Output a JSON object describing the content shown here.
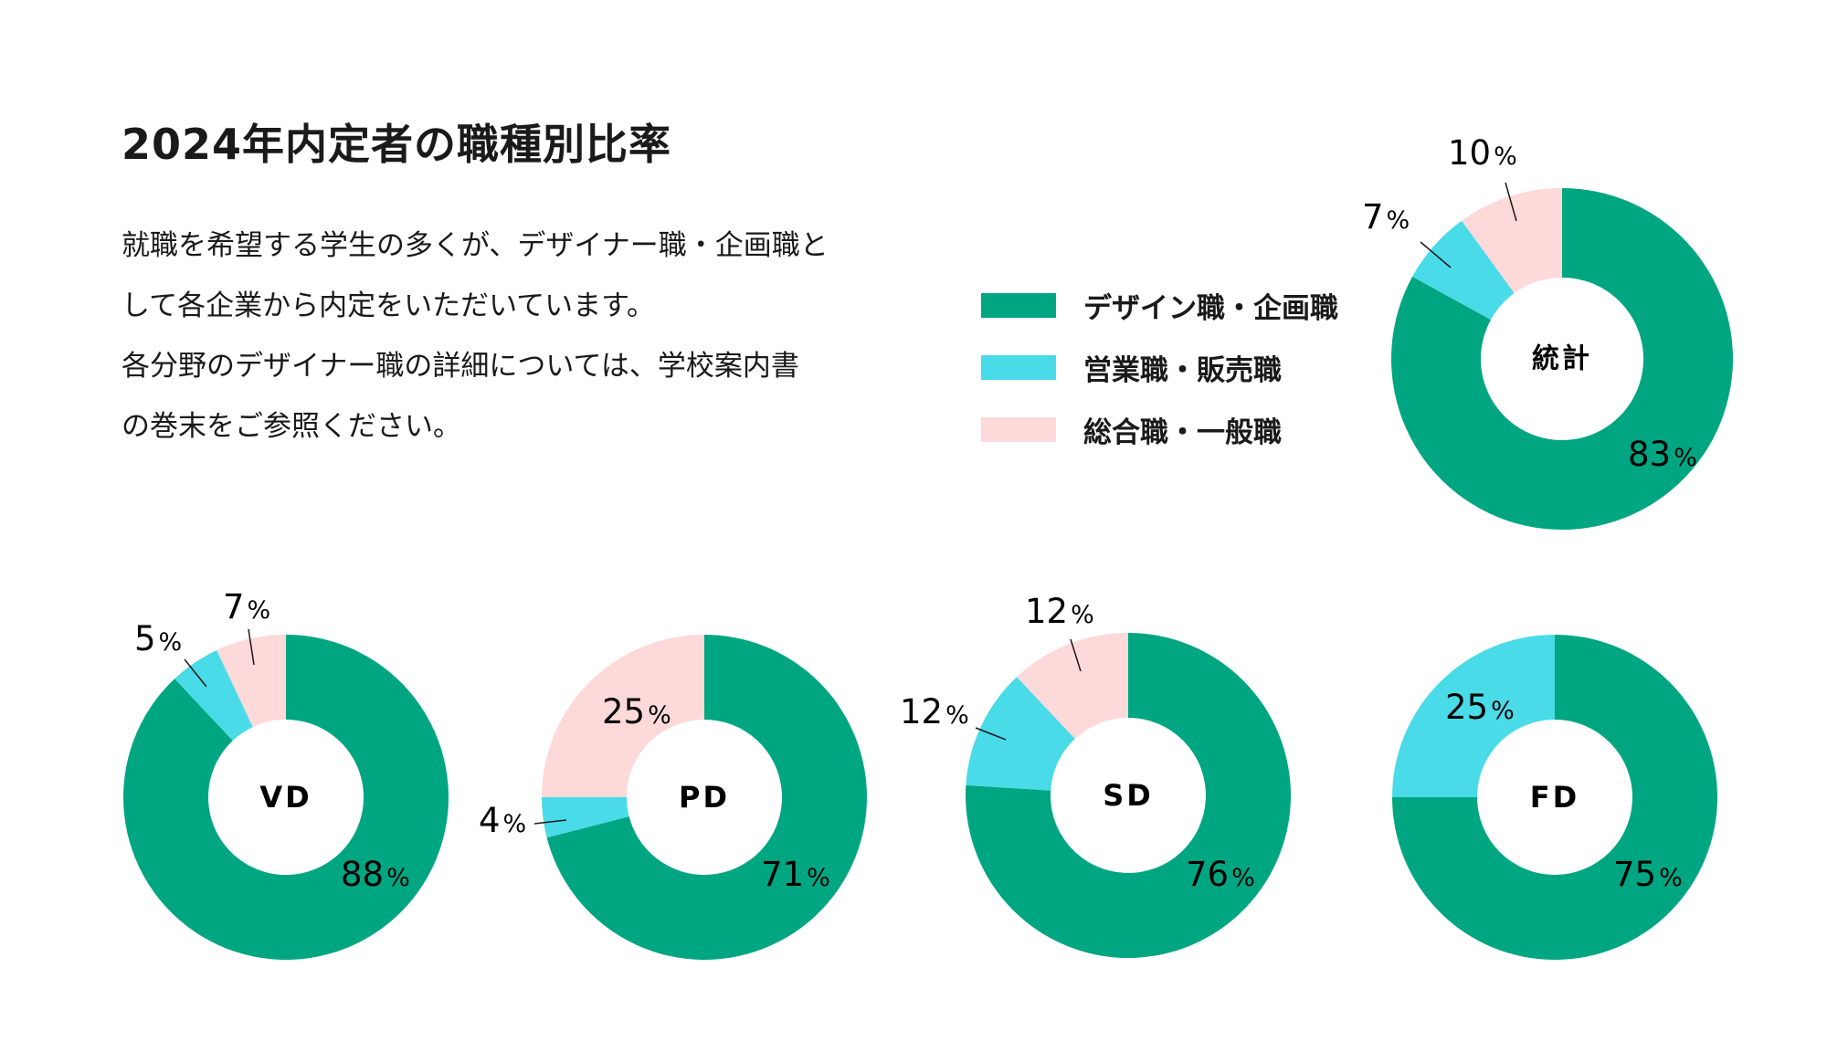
{
  "title": "2024年内定者の職種別比率",
  "description": [
    "就職を希望する学生の多くが、デザイナー職・企画職と",
    "して各企業から内定をいただいています。",
    "各分野のデザイナー職の詳細については、学校案内書",
    "の巻末をご参照ください。"
  ],
  "colors": {
    "design_planning": "#00a681",
    "sales_retail": "#4adbe8",
    "general": "#fdd9da"
  },
  "legend": [
    {
      "label": "デザイン職・企画職",
      "color": "#00a681"
    },
    {
      "label": "営業職・販売職",
      "color": "#4adbe8"
    },
    {
      "label": "総合職・一般職",
      "color": "#fdd9da"
    }
  ],
  "chart_data": [
    {
      "type": "pie",
      "center_label": "統計",
      "slices": [
        {
          "category": "デザイン職・企画職",
          "value": 83,
          "label": "83"
        },
        {
          "category": "営業職・販売職",
          "value": 7,
          "label": "7"
        },
        {
          "category": "総合職・一般職",
          "value": 10,
          "label": "10"
        }
      ],
      "unit": "%"
    },
    {
      "type": "pie",
      "center_label": "VD",
      "slices": [
        {
          "category": "デザイン職・企画職",
          "value": 88,
          "label": "88"
        },
        {
          "category": "営業職・販売職",
          "value": 5,
          "label": "5"
        },
        {
          "category": "総合職・一般職",
          "value": 7,
          "label": "7"
        }
      ],
      "unit": "%"
    },
    {
      "type": "pie",
      "center_label": "PD",
      "slices": [
        {
          "category": "デザイン職・企画職",
          "value": 71,
          "label": "71"
        },
        {
          "category": "営業職・販売職",
          "value": 4,
          "label": "4"
        },
        {
          "category": "総合職・一般職",
          "value": 25,
          "label": "25"
        }
      ],
      "unit": "%"
    },
    {
      "type": "pie",
      "center_label": "SD",
      "slices": [
        {
          "category": "デザイン職・企画職",
          "value": 76,
          "label": "76"
        },
        {
          "category": "営業職・販売職",
          "value": 12,
          "label": "12"
        },
        {
          "category": "総合職・一般職",
          "value": 12,
          "label": "12"
        }
      ],
      "unit": "%"
    },
    {
      "type": "pie",
      "center_label": "FD",
      "slices": [
        {
          "category": "デザイン職・企画職",
          "value": 75,
          "label": "75"
        },
        {
          "category": "営業職・販売職",
          "value": 25,
          "label": "25"
        }
      ],
      "unit": "%"
    }
  ]
}
